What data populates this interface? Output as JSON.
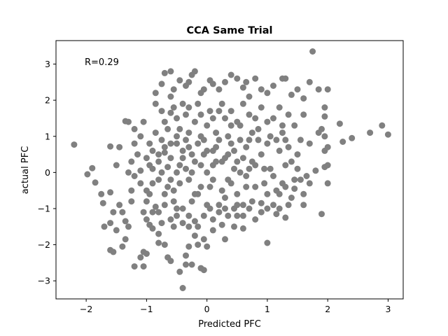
{
  "chart_data": {
    "type": "scatter",
    "title": "CCA Same Trial",
    "xlabel": "Predicted PFC",
    "ylabel": "actual PFC",
    "xlim": [
      -2.5,
      3.25
    ],
    "ylim": [
      -3.5,
      3.65
    ],
    "xticks": [
      "−2",
      "−1",
      "0",
      "1",
      "2",
      "3"
    ],
    "yticks": [
      "−3",
      "−2",
      "−1",
      "0",
      "1",
      "2",
      "3"
    ],
    "annotation": "R=0.29",
    "grid": false,
    "marker_color": "#808080",
    "series": [
      {
        "points": [
          [
            -2.2,
            0.77
          ],
          [
            -1.98,
            -0.05
          ],
          [
            -1.9,
            0.12
          ],
          [
            -1.85,
            -0.28
          ],
          [
            -1.6,
            0.72
          ],
          [
            -1.5,
            0.2
          ],
          [
            -1.45,
            0.7
          ],
          [
            -1.75,
            -0.6
          ],
          [
            -1.6,
            -0.55
          ],
          [
            -1.55,
            -1.1
          ],
          [
            -1.72,
            -0.85
          ],
          [
            -1.7,
            -1.5
          ],
          [
            -1.6,
            -2.15
          ],
          [
            -1.55,
            -2.2
          ],
          [
            -1.6,
            -1.4
          ],
          [
            -1.5,
            -1.6
          ],
          [
            -1.45,
            -0.9
          ],
          [
            -1.4,
            -1.1
          ],
          [
            -1.35,
            -1.35
          ],
          [
            -1.3,
            -1.5
          ],
          [
            -1.35,
            -1.85
          ],
          [
            -1.4,
            -2.05
          ],
          [
            -1.2,
            -2.6
          ],
          [
            -1.05,
            -2.6
          ],
          [
            -1.05,
            -2.2
          ],
          [
            -1.0,
            -2.25
          ],
          [
            -1.1,
            -2.35
          ],
          [
            -1.3,
            1.4
          ],
          [
            -1.35,
            1.42
          ],
          [
            -1.2,
            1.2
          ],
          [
            -1.1,
            1.0
          ],
          [
            -1.05,
            1.4
          ],
          [
            -0.85,
            1.9
          ],
          [
            -0.75,
            1.7
          ],
          [
            -0.6,
            1.65
          ],
          [
            -0.85,
            2.2
          ],
          [
            -0.75,
            2.45
          ],
          [
            -0.7,
            2.75
          ],
          [
            -0.6,
            2.8
          ],
          [
            -0.55,
            2.3
          ],
          [
            -0.6,
            2.1
          ],
          [
            -0.45,
            2.55
          ],
          [
            -0.35,
            2.4
          ],
          [
            -0.3,
            2.5
          ],
          [
            -0.25,
            2.7
          ],
          [
            -0.2,
            2.8
          ],
          [
            -0.1,
            2.2
          ],
          [
            -0.05,
            2.3
          ],
          [
            0.05,
            2.55
          ],
          [
            0.1,
            2.45
          ],
          [
            0.2,
            2.3
          ],
          [
            0.3,
            2.5
          ],
          [
            0.4,
            2.7
          ],
          [
            0.5,
            2.6
          ],
          [
            0.6,
            2.35
          ],
          [
            0.65,
            2.5
          ],
          [
            0.8,
            2.6
          ],
          [
            0.9,
            2.3
          ],
          [
            0.7,
            2.1
          ],
          [
            1.0,
            2.2
          ],
          [
            1.1,
            2.4
          ],
          [
            1.25,
            2.6
          ],
          [
            1.3,
            2.6
          ],
          [
            1.4,
            2.15
          ],
          [
            1.5,
            2.3
          ],
          [
            1.6,
            2.05
          ],
          [
            1.7,
            2.5
          ],
          [
            1.75,
            3.35
          ],
          [
            1.85,
            2.3
          ],
          [
            1.95,
            1.8
          ],
          [
            1.95,
            1.55
          ],
          [
            2.0,
            2.3
          ],
          [
            2.2,
            1.35
          ],
          [
            2.25,
            0.85
          ],
          [
            2.4,
            0.95
          ],
          [
            2.7,
            1.1
          ],
          [
            2.9,
            1.3
          ],
          [
            3.0,
            1.05
          ],
          [
            1.85,
            1.1
          ],
          [
            1.9,
            1.2
          ],
          [
            1.95,
            1.0
          ],
          [
            1.95,
            0.6
          ],
          [
            2.0,
            0.7
          ],
          [
            1.95,
            0.15
          ],
          [
            2.0,
            0.2
          ],
          [
            2.0,
            -0.3
          ],
          [
            1.9,
            -1.15
          ],
          [
            1.6,
            -0.9
          ],
          [
            1.6,
            -0.6
          ],
          [
            1.7,
            -0.3
          ],
          [
            1.8,
            0.05
          ],
          [
            1.5,
            0.1
          ],
          [
            1.55,
            -0.2
          ],
          [
            1.45,
            -0.45
          ],
          [
            1.3,
            -1.25
          ],
          [
            1.2,
            -1.0
          ],
          [
            1.15,
            -1.15
          ],
          [
            1.0,
            -1.0
          ],
          [
            0.9,
            -0.85
          ],
          [
            0.8,
            -1.3
          ],
          [
            0.7,
            -1.0
          ],
          [
            1.0,
            -1.95
          ],
          [
            0.6,
            -1.55
          ],
          [
            0.5,
            -1.2
          ],
          [
            0.35,
            -1.2
          ],
          [
            0.25,
            -1.45
          ],
          [
            0.3,
            -1.85
          ],
          [
            0.1,
            -1.6
          ],
          [
            0.0,
            -2.05
          ],
          [
            -0.05,
            -1.85
          ],
          [
            -0.15,
            -2.0
          ],
          [
            -0.2,
            -1.75
          ],
          [
            -0.3,
            -2.05
          ],
          [
            -0.35,
            -2.3
          ],
          [
            -0.45,
            -2.75
          ],
          [
            -0.35,
            -2.55
          ],
          [
            -0.25,
            -2.55
          ],
          [
            -0.1,
            -2.65
          ],
          [
            -0.05,
            -2.7
          ],
          [
            -0.4,
            -3.2
          ],
          [
            -0.6,
            -2.45
          ],
          [
            -0.65,
            -2.35
          ],
          [
            -0.7,
            -2.0
          ],
          [
            -0.8,
            -1.95
          ],
          [
            -0.8,
            -1.7
          ],
          [
            -0.9,
            -1.55
          ],
          [
            -0.95,
            -1.45
          ],
          [
            -1.0,
            -1.3
          ],
          [
            -1.05,
            -1.1
          ],
          [
            -0.9,
            -1.1
          ],
          [
            -0.85,
            -0.95
          ],
          [
            -0.75,
            -1.4
          ],
          [
            -0.6,
            -1.3
          ],
          [
            -0.55,
            -1.5
          ],
          [
            -0.4,
            -1.4
          ],
          [
            -0.3,
            -1.5
          ],
          [
            -0.3,
            -1.2
          ],
          [
            -0.2,
            -1.35
          ],
          [
            -0.15,
            -1.5
          ],
          [
            -0.5,
            -1.0
          ],
          [
            -1.1,
            -0.3
          ],
          [
            -1.2,
            -0.1
          ],
          [
            -1.25,
            -0.5
          ],
          [
            -1.0,
            0.4
          ],
          [
            -0.9,
            0.6
          ],
          [
            -0.95,
            0.8
          ],
          [
            -1.2,
            0.8
          ],
          [
            -1.25,
            0.3
          ],
          [
            -1.1,
            0.05
          ],
          [
            -0.8,
            0.3
          ],
          [
            -0.7,
            0.55
          ],
          [
            -0.65,
            0.15
          ],
          [
            -0.6,
            -0.2
          ],
          [
            -0.55,
            -0.5
          ],
          [
            -0.7,
            -0.6
          ],
          [
            -0.5,
            0.8
          ],
          [
            -0.45,
            1.2
          ],
          [
            -0.4,
            0.4
          ],
          [
            -0.35,
            0.9
          ],
          [
            -0.3,
            -0.2
          ],
          [
            -0.25,
            0.5
          ],
          [
            -0.2,
            1.4
          ],
          [
            -0.15,
            -0.6
          ],
          [
            -0.1,
            0.2
          ],
          [
            -0.05,
            0.9
          ],
          [
            0.0,
            0.0
          ],
          [
            0.05,
            -0.4
          ],
          [
            0.1,
            0.6
          ],
          [
            0.15,
            1.1
          ],
          [
            0.2,
            -0.9
          ],
          [
            0.25,
            0.3
          ],
          [
            0.3,
            1.5
          ],
          [
            0.35,
            -0.2
          ],
          [
            0.4,
            0.8
          ],
          [
            0.45,
            0.1
          ],
          [
            0.5,
            -0.6
          ],
          [
            0.55,
            1.3
          ],
          [
            0.6,
            0.4
          ],
          [
            0.65,
            -0.1
          ],
          [
            0.7,
            0.9
          ],
          [
            0.75,
            -0.8
          ],
          [
            0.8,
            0.2
          ],
          [
            0.85,
            1.2
          ],
          [
            0.9,
            0.5
          ],
          [
            0.95,
            -0.3
          ],
          [
            1.0,
            0.8
          ],
          [
            1.05,
            0.1
          ],
          [
            1.1,
            1.5
          ],
          [
            1.15,
            -0.5
          ],
          [
            1.2,
            0.6
          ],
          [
            1.25,
            1.1
          ],
          [
            1.3,
            0.2
          ],
          [
            1.35,
            0.7
          ],
          [
            1.4,
            -0.7
          ],
          [
            1.45,
            1.3
          ],
          [
            1.5,
            0.5
          ],
          [
            1.55,
            0.9
          ],
          [
            1.6,
            1.6
          ],
          [
            1.65,
            -0.1
          ],
          [
            1.7,
            0.8
          ],
          [
            -0.5,
            0.0
          ],
          [
            -0.45,
            -0.3
          ],
          [
            -0.4,
            0.6
          ],
          [
            -0.35,
            0.1
          ],
          [
            -0.3,
            1.1
          ],
          [
            -0.25,
            -0.8
          ],
          [
            -0.2,
            0.3
          ],
          [
            -0.15,
            0.8
          ],
          [
            -0.1,
            -0.4
          ],
          [
            -0.05,
            0.5
          ],
          [
            0.0,
            1.3
          ],
          [
            0.05,
            -1.0
          ],
          [
            0.1,
            0.2
          ],
          [
            0.15,
            0.7
          ],
          [
            0.2,
            1.7
          ],
          [
            0.25,
            -0.5
          ],
          [
            0.3,
            0.4
          ],
          [
            0.35,
            1.0
          ],
          [
            0.4,
            -0.3
          ],
          [
            0.45,
            0.6
          ],
          [
            0.5,
            1.4
          ],
          [
            0.55,
            0.0
          ],
          [
            0.6,
            -0.9
          ],
          [
            0.65,
            0.7
          ],
          [
            0.7,
            1.6
          ],
          [
            0.75,
            0.3
          ],
          [
            0.8,
            -0.4
          ],
          [
            0.85,
            0.9
          ],
          [
            0.9,
            1.8
          ],
          [
            0.95,
            0.1
          ],
          [
            1.0,
            -0.6
          ],
          [
            1.05,
            1.0
          ],
          [
            -0.8,
            -0.2
          ],
          [
            -0.75,
            0.9
          ],
          [
            -0.7,
            -0.9
          ],
          [
            -0.65,
            1.2
          ],
          [
            -0.6,
            0.4
          ],
          [
            -0.55,
            -0.8
          ],
          [
            -0.5,
            1.5
          ],
          [
            -0.45,
            0.2
          ],
          [
            -0.4,
            -1.0
          ],
          [
            -0.35,
            1.6
          ],
          [
            -0.3,
            0.7
          ],
          [
            -0.25,
            0.0
          ],
          [
            -0.2,
            -0.6
          ],
          [
            -0.15,
            1.9
          ],
          [
            -0.1,
            1.0
          ],
          [
            -0.05,
            -1.2
          ],
          [
            0.0,
            0.6
          ],
          [
            0.05,
            1.7
          ],
          [
            0.1,
            -0.2
          ],
          [
            0.15,
            0.3
          ],
          [
            0.2,
            0.9
          ],
          [
            0.25,
            1.9
          ],
          [
            0.3,
            -0.7
          ],
          [
            0.35,
            0.5
          ],
          [
            0.4,
            1.3
          ],
          [
            0.45,
            -1.0
          ],
          [
            0.5,
            0.3
          ],
          [
            0.55,
            0.9
          ],
          [
            0.6,
            1.9
          ],
          [
            0.65,
            -0.4
          ],
          [
            0.7,
            0.1
          ],
          [
            0.75,
            1.1
          ],
          [
            1.1,
            -0.1
          ],
          [
            1.15,
            0.9
          ],
          [
            1.2,
            1.8
          ],
          [
            1.25,
            -0.3
          ],
          [
            1.3,
            0.9
          ],
          [
            1.35,
            1.6
          ],
          [
            1.4,
            0.3
          ],
          [
            1.45,
            -0.2
          ],
          [
            -0.95,
            -0.6
          ],
          [
            -0.9,
            0.1
          ],
          [
            -0.85,
            1.1
          ],
          [
            -0.8,
            -1.1
          ],
          [
            -0.75,
            0.0
          ],
          [
            -0.7,
            1.4
          ],
          [
            -0.65,
            -0.4
          ],
          [
            -0.6,
            0.8
          ],
          [
            -1.15,
            0.5
          ],
          [
            -1.3,
            0.0
          ],
          [
            -1.25,
            -0.8
          ],
          [
            -1.0,
            -0.8
          ],
          [
            -0.95,
            0.2
          ],
          [
            -0.55,
            1.8
          ],
          [
            -0.5,
            -1.2
          ],
          [
            -0.4,
            1.9
          ],
          [
            0.0,
            -0.9
          ],
          [
            0.1,
            -1.3
          ],
          [
            0.2,
            -1.1
          ],
          [
            0.3,
            -1.0
          ],
          [
            0.5,
            -0.9
          ],
          [
            0.6,
            -1.2
          ],
          [
            0.9,
            -1.1
          ],
          [
            1.1,
            -0.9
          ],
          [
            1.2,
            -0.6
          ],
          [
            1.3,
            -0.4
          ],
          [
            1.35,
            -0.9
          ],
          [
            1.25,
            1.3
          ],
          [
            1.0,
            1.4
          ],
          [
            0.8,
            1.5
          ],
          [
            0.4,
            1.7
          ],
          [
            0.1,
            1.5
          ],
          [
            -0.1,
            1.6
          ],
          [
            -0.3,
            1.8
          ],
          [
            -0.5,
            1.0
          ],
          [
            -0.7,
            0.7
          ],
          [
            -0.9,
            -0.3
          ],
          [
            -1.0,
            -0.5
          ],
          [
            -0.8,
            0.5
          ],
          [
            0.45,
            -1.5
          ]
        ]
      }
    ]
  }
}
